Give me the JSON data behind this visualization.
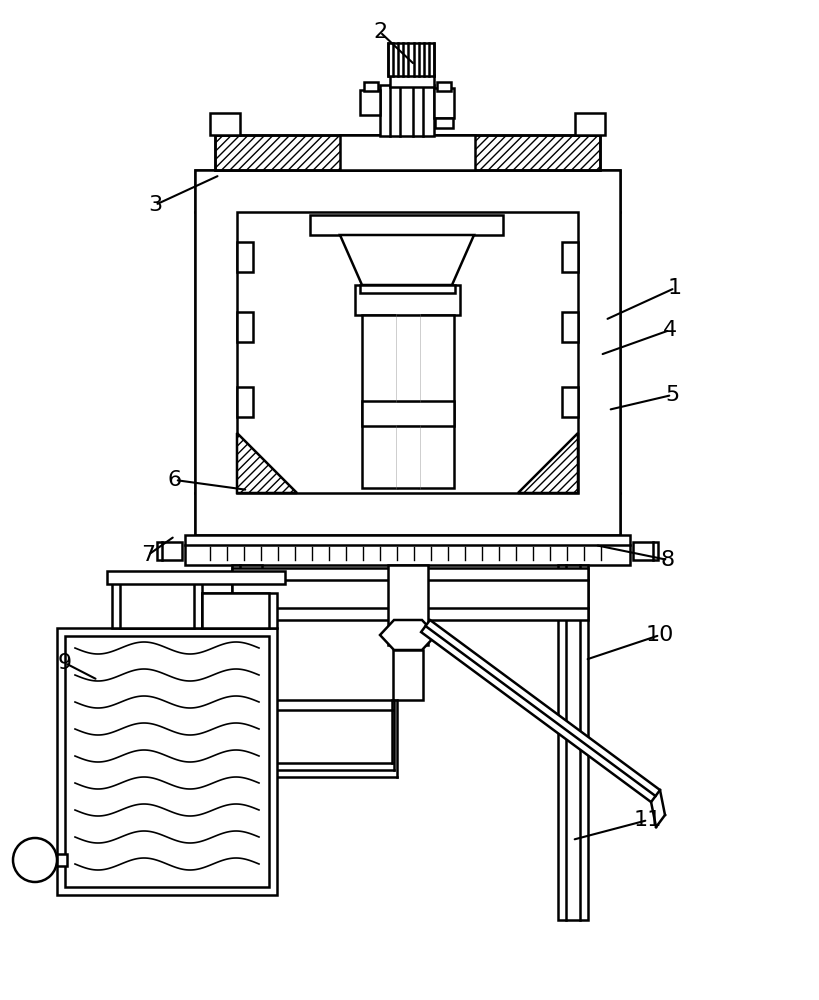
{
  "bg_color": "#ffffff",
  "line_color": "#000000",
  "lw": 1.8,
  "lw_thin": 1.2
}
